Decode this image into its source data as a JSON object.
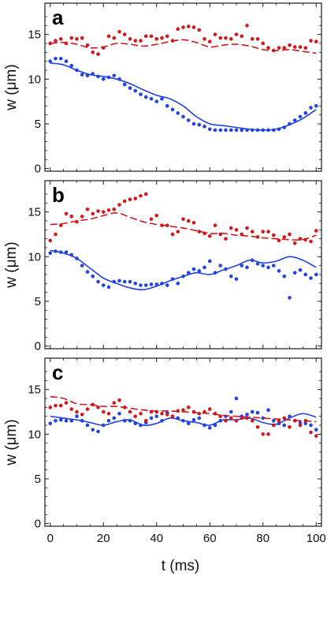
{
  "colors": {
    "red": "#d0191b",
    "blue": "#2143e0",
    "frame": "#1a1a1a"
  },
  "x_axis": {
    "label": "t (ms)",
    "ticks": [
      0,
      20,
      40,
      60,
      80,
      100
    ],
    "range": [
      -2,
      102
    ]
  },
  "chart_data": [
    {
      "type": "scatter",
      "panel_label": "a",
      "ylabel": "w (μm)",
      "xlim": [
        -2,
        102
      ],
      "ylim": [
        -0.3,
        18.5
      ],
      "yticks": [
        0,
        5,
        10,
        15
      ],
      "series": [
        {
          "color": "#d0191b",
          "style": "points",
          "x": [
            0,
            2,
            4,
            6,
            8,
            10,
            12,
            14,
            16,
            18,
            20,
            22,
            24,
            26,
            28,
            30,
            32,
            34,
            36,
            38,
            40,
            42,
            44,
            46,
            48,
            50,
            52,
            54,
            56,
            58,
            60,
            62,
            64,
            66,
            68,
            70,
            72,
            74,
            76,
            78,
            80,
            82,
            84,
            86,
            88,
            90,
            92,
            94,
            96,
            98,
            100
          ],
          "y": [
            14.0,
            14.3,
            14.5,
            14.0,
            14.6,
            14.5,
            14.6,
            13.8,
            13.0,
            12.8,
            13.5,
            14.8,
            14.6,
            15.3,
            15.0,
            14.5,
            14.3,
            14.3,
            14.8,
            14.8,
            14.5,
            14.6,
            14.8,
            14.3,
            15.6,
            15.8,
            15.9,
            15.8,
            15.5,
            14.5,
            14.2,
            15.0,
            14.6,
            14.6,
            14.5,
            15.0,
            14.8,
            16.0,
            14.5,
            14.5,
            14.0,
            13.5,
            13.2,
            13.5,
            13.5,
            13.8,
            13.6,
            13.6,
            13.5,
            14.3,
            14.2
          ]
        },
        {
          "color": "#d0191b",
          "style": "dashed",
          "x": [
            0,
            5,
            10,
            15,
            20,
            25,
            30,
            35,
            40,
            45,
            50,
            55,
            60,
            65,
            70,
            75,
            80,
            85,
            90,
            95,
            100
          ],
          "y": [
            14.0,
            14.1,
            13.9,
            13.5,
            13.6,
            14.0,
            13.9,
            13.7,
            13.9,
            14.2,
            14.4,
            14.1,
            13.6,
            13.8,
            13.9,
            13.7,
            13.3,
            13.2,
            13.3,
            13.1,
            12.9
          ]
        },
        {
          "color": "#2143e0",
          "style": "points",
          "x": [
            0,
            2,
            4,
            6,
            8,
            10,
            12,
            14,
            16,
            18,
            20,
            22,
            24,
            26,
            28,
            30,
            32,
            34,
            36,
            38,
            40,
            42,
            44,
            46,
            48,
            50,
            52,
            54,
            56,
            58,
            60,
            62,
            64,
            66,
            68,
            70,
            72,
            74,
            76,
            78,
            80,
            82,
            84,
            86,
            88,
            90,
            92,
            94,
            96,
            98,
            100
          ],
          "y": [
            12.0,
            12.3,
            12.3,
            12.0,
            11.5,
            11.0,
            10.5,
            10.4,
            10.6,
            10.3,
            10.0,
            10.2,
            10.4,
            10.0,
            9.4,
            9.0,
            8.7,
            8.3,
            8.0,
            7.8,
            7.5,
            7.8,
            7.0,
            6.6,
            6.2,
            5.8,
            5.4,
            5.0,
            4.9,
            4.7,
            4.4,
            4.3,
            4.3,
            4.3,
            4.3,
            4.3,
            4.3,
            4.3,
            4.3,
            4.3,
            4.3,
            4.3,
            4.3,
            4.4,
            4.6,
            5.0,
            5.4,
            5.8,
            6.2,
            6.8,
            7.0
          ]
        },
        {
          "color": "#2143e0",
          "style": "solid",
          "x": [
            0,
            5,
            10,
            15,
            20,
            25,
            30,
            35,
            40,
            45,
            50,
            55,
            60,
            65,
            70,
            75,
            80,
            85,
            90,
            95,
            100
          ],
          "y": [
            11.8,
            11.6,
            11.0,
            10.5,
            10.3,
            10.0,
            9.5,
            8.8,
            8.2,
            7.8,
            7.0,
            5.8,
            5.0,
            4.8,
            4.6,
            4.4,
            4.3,
            4.4,
            4.9,
            5.6,
            6.6
          ]
        }
      ]
    },
    {
      "type": "scatter",
      "panel_label": "b",
      "ylabel": "w (μm)",
      "xlim": [
        -2,
        102
      ],
      "ylim": [
        -0.3,
        18.5
      ],
      "yticks": [
        0,
        5,
        10,
        15
      ],
      "series": [
        {
          "color": "#d0191b",
          "style": "points",
          "x": [
            0,
            2,
            4,
            6,
            8,
            10,
            12,
            14,
            16,
            18,
            20,
            22,
            24,
            26,
            28,
            30,
            32,
            34,
            36,
            38,
            40,
            42,
            44,
            46,
            48,
            50,
            52,
            54,
            56,
            58,
            60,
            62,
            64,
            66,
            68,
            70,
            72,
            74,
            76,
            78,
            80,
            82,
            84,
            86,
            88,
            90,
            92,
            94,
            96,
            98,
            100
          ],
          "y": [
            11.8,
            12.5,
            13.5,
            14.8,
            14.5,
            13.9,
            14.5,
            15.3,
            14.8,
            15.1,
            15.0,
            15.2,
            15.3,
            15.8,
            16.2,
            16.4,
            16.5,
            16.8,
            17.0,
            14.2,
            14.6,
            13.5,
            13.5,
            12.5,
            12.8,
            14.2,
            14.0,
            13.8,
            12.8,
            12.6,
            12.3,
            13.5,
            12.5,
            12.0,
            13.2,
            13.0,
            12.5,
            13.2,
            12.8,
            12.2,
            12.8,
            12.8,
            12.4,
            11.8,
            12.2,
            12.5,
            11.5,
            12.0,
            11.9,
            11.7,
            12.9
          ]
        },
        {
          "color": "#d0191b",
          "style": "dashed",
          "x": [
            0,
            5,
            10,
            15,
            20,
            25,
            30,
            35,
            40,
            45,
            50,
            55,
            60,
            65,
            70,
            75,
            80,
            85,
            90,
            95,
            100
          ],
          "y": [
            13.6,
            13.7,
            14.0,
            14.2,
            14.6,
            14.9,
            14.4,
            13.9,
            13.6,
            13.4,
            13.2,
            12.9,
            12.6,
            12.6,
            12.4,
            12.3,
            12.1,
            12.0,
            11.9,
            11.9,
            12.4
          ]
        },
        {
          "color": "#2143e0",
          "style": "points",
          "x": [
            0,
            2,
            4,
            6,
            8,
            10,
            12,
            14,
            16,
            18,
            20,
            22,
            24,
            26,
            28,
            30,
            32,
            34,
            36,
            38,
            40,
            42,
            44,
            46,
            48,
            50,
            52,
            54,
            56,
            58,
            60,
            62,
            64,
            66,
            68,
            70,
            72,
            74,
            76,
            78,
            80,
            82,
            84,
            86,
            88,
            90,
            92,
            94,
            96,
            98,
            100
          ],
          "y": [
            10.4,
            10.6,
            10.5,
            10.5,
            10.2,
            9.8,
            9.0,
            8.3,
            7.8,
            7.2,
            6.8,
            6.6,
            7.2,
            7.3,
            7.2,
            7.2,
            7.0,
            6.8,
            6.8,
            6.9,
            6.9,
            7.0,
            6.8,
            7.5,
            7.0,
            7.8,
            8.2,
            8.6,
            8.4,
            8.8,
            9.5,
            8.2,
            9.0,
            8.6,
            7.8,
            7.5,
            9.0,
            8.8,
            9.6,
            9.2,
            9.0,
            8.8,
            9.0,
            8.4,
            7.8,
            5.4,
            8.2,
            8.5,
            8.0,
            7.6,
            8.0
          ]
        },
        {
          "color": "#2143e0",
          "style": "solid",
          "x": [
            0,
            5,
            10,
            15,
            20,
            25,
            30,
            35,
            40,
            45,
            50,
            55,
            60,
            65,
            70,
            75,
            80,
            85,
            90,
            95,
            100
          ],
          "y": [
            10.7,
            10.4,
            9.8,
            8.7,
            7.6,
            7.0,
            6.5,
            6.3,
            6.7,
            7.3,
            7.8,
            8.2,
            8.0,
            8.5,
            9.0,
            9.6,
            9.3,
            9.5,
            10.0,
            9.6,
            8.8
          ]
        }
      ]
    },
    {
      "type": "scatter",
      "panel_label": "c",
      "ylabel": "w (μm)",
      "xlim": [
        -2,
        102
      ],
      "ylim": [
        -0.3,
        18.5
      ],
      "yticks": [
        0,
        5,
        10,
        15
      ],
      "series": [
        {
          "color": "#2143e0",
          "style": "points",
          "x": [
            0,
            2,
            4,
            6,
            8,
            10,
            12,
            14,
            16,
            18,
            20,
            22,
            24,
            26,
            28,
            30,
            32,
            34,
            36,
            38,
            40,
            42,
            44,
            46,
            48,
            50,
            52,
            54,
            56,
            58,
            60,
            62,
            64,
            66,
            68,
            70,
            72,
            74,
            76,
            78,
            80,
            82,
            84,
            86,
            88,
            90,
            92,
            94,
            96,
            98,
            100
          ],
          "y": [
            11.2,
            11.5,
            11.6,
            11.5,
            11.5,
            12.0,
            11.5,
            11.0,
            10.5,
            10.3,
            11.0,
            11.5,
            11.8,
            12.3,
            11.5,
            11.5,
            11.2,
            11.0,
            11.3,
            11.8,
            12.0,
            11.5,
            12.4,
            12.0,
            11.8,
            11.5,
            11.2,
            11.6,
            11.8,
            11.0,
            10.7,
            11.0,
            11.5,
            12.0,
            12.5,
            14.0,
            12.0,
            12.2,
            12.5,
            12.4,
            11.8,
            12.7,
            11.5,
            11.2,
            11.0,
            12.0,
            11.5,
            11.3,
            11.2,
            11.0,
            10.5
          ]
        },
        {
          "color": "#2143e0",
          "style": "solid",
          "x": [
            0,
            5,
            10,
            15,
            20,
            25,
            30,
            35,
            40,
            45,
            50,
            55,
            60,
            65,
            70,
            75,
            80,
            85,
            90,
            95,
            100
          ],
          "y": [
            12.0,
            11.8,
            11.6,
            11.3,
            11.0,
            11.4,
            11.6,
            11.0,
            11.2,
            11.8,
            11.5,
            11.3,
            11.0,
            11.6,
            11.6,
            11.8,
            11.3,
            11.1,
            11.8,
            12.3,
            11.9
          ]
        },
        {
          "color": "#d0191b",
          "style": "points",
          "x": [
            0,
            2,
            4,
            6,
            8,
            10,
            12,
            14,
            16,
            18,
            20,
            22,
            24,
            26,
            28,
            30,
            32,
            34,
            36,
            38,
            40,
            42,
            44,
            46,
            48,
            50,
            52,
            54,
            56,
            58,
            60,
            62,
            64,
            66,
            68,
            70,
            72,
            74,
            76,
            78,
            80,
            82,
            84,
            86,
            88,
            90,
            92,
            94,
            96,
            98,
            100
          ],
          "y": [
            13.0,
            13.2,
            13.2,
            13.5,
            12.8,
            12.5,
            12.2,
            12.8,
            13.3,
            13.0,
            12.5,
            12.3,
            13.5,
            13.8,
            13.0,
            12.5,
            12.0,
            12.3,
            11.5,
            12.5,
            12.5,
            12.3,
            12.2,
            12.0,
            12.6,
            12.7,
            13.0,
            12.5,
            12.3,
            12.5,
            12.8,
            12.3,
            12.0,
            11.5,
            11.8,
            11.5,
            11.8,
            11.8,
            11.5,
            10.8,
            10.0,
            10.0,
            11.0,
            11.5,
            11.8,
            10.8,
            11.5,
            11.0,
            11.5,
            10.2,
            9.8
          ]
        },
        {
          "color": "#d0191b",
          "style": "dashed",
          "x": [
            0,
            5,
            10,
            15,
            20,
            25,
            30,
            35,
            40,
            45,
            50,
            55,
            60,
            65,
            70,
            75,
            80,
            85,
            90,
            95,
            100
          ],
          "y": [
            14.2,
            14.0,
            13.4,
            13.3,
            13.1,
            13.1,
            12.9,
            12.7,
            12.6,
            12.6,
            12.5,
            12.4,
            12.3,
            12.1,
            12.0,
            11.9,
            11.8,
            11.7,
            11.6,
            11.5,
            11.4
          ]
        }
      ]
    }
  ]
}
